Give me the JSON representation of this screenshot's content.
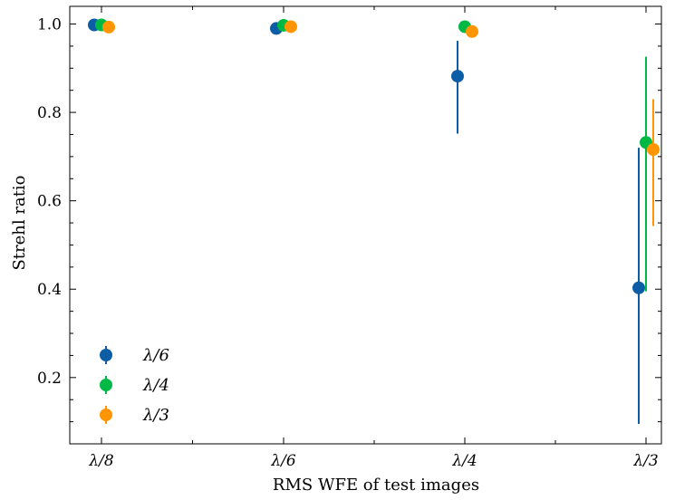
{
  "chart_data": {
    "type": "scatter",
    "xlabel": "RMS WFE of test images",
    "ylabel": "Strehl ratio",
    "categories": [
      "λ/8",
      "λ/6",
      "λ/4",
      "λ/3"
    ],
    "ylim": [
      0.05,
      1.04
    ],
    "yticks": [
      0.2,
      0.4,
      0.6,
      0.8,
      1.0
    ],
    "ytick_labels": [
      "0.2",
      "0.4",
      "0.6",
      "0.8",
      "1.0"
    ],
    "grid": false,
    "legend_position": "lower-left",
    "series": [
      {
        "name": "λ/6",
        "color": "#0C5DA5",
        "offset": -0.04,
        "values": [
          0.998,
          0.99,
          0.882,
          0.403
        ],
        "err_low": [
          0.998,
          0.99,
          0.752,
          0.095
        ],
        "err_high": [
          0.998,
          0.99,
          0.962,
          0.72
        ]
      },
      {
        "name": "λ/4",
        "color": "#00B945",
        "offset": 0.0,
        "values": [
          0.998,
          0.997,
          0.994,
          0.732
        ],
        "err_low": [
          0.998,
          0.997,
          0.994,
          0.395
        ],
        "err_high": [
          0.998,
          0.997,
          0.994,
          0.926
        ]
      },
      {
        "name": "λ/3",
        "color": "#FF9500",
        "offset": 0.04,
        "values": [
          0.993,
          0.994,
          0.983,
          0.716
        ],
        "err_low": [
          0.993,
          0.994,
          0.983,
          0.543
        ],
        "err_high": [
          0.993,
          0.994,
          0.983,
          0.83
        ]
      }
    ]
  }
}
